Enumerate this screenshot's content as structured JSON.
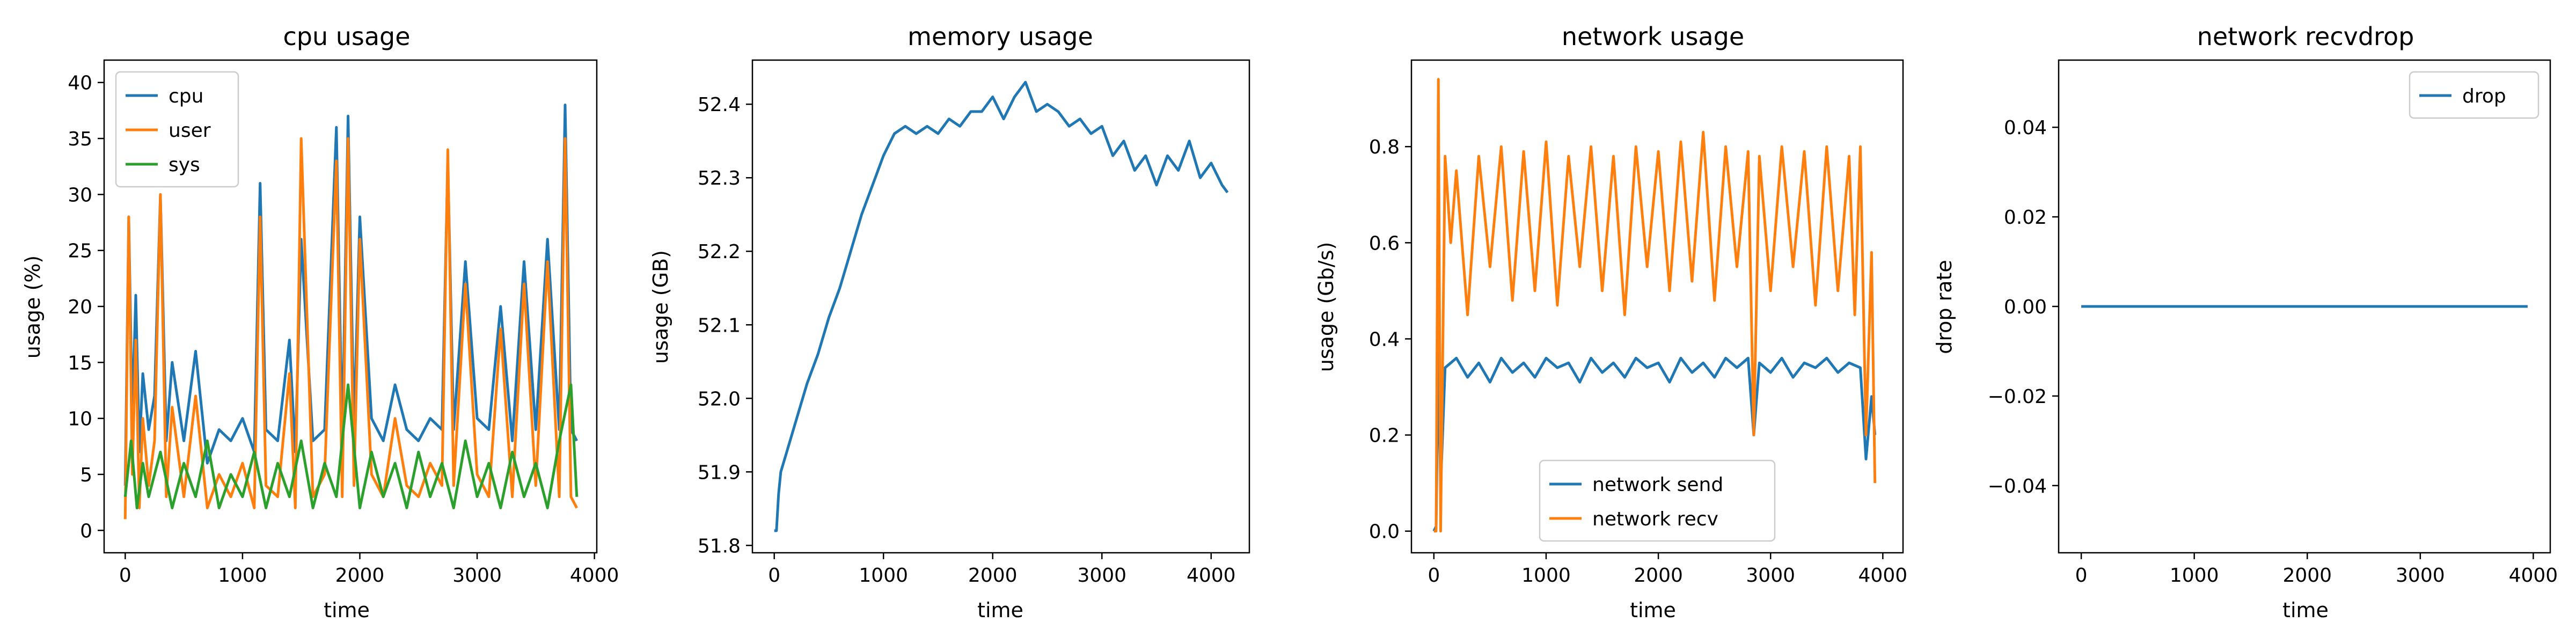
{
  "chart_data": [
    {
      "type": "line",
      "title": "cpu usage",
      "xlabel": "time",
      "ylabel": "usage (%)",
      "xlim": [
        -180,
        4020
      ],
      "ylim": [
        -2,
        42
      ],
      "xticks": [
        0,
        1000,
        2000,
        3000,
        4000
      ],
      "xtick_labels": [
        "0",
        "1000",
        "2000",
        "3000",
        "4000"
      ],
      "yticks": [
        0,
        5,
        10,
        15,
        20,
        25,
        30,
        35,
        40
      ],
      "ytick_labels": [
        "0",
        "5",
        "10",
        "15",
        "20",
        "25",
        "30",
        "35",
        "40"
      ],
      "legend": "top-left",
      "series": [
        {
          "name": "cpu",
          "color": "#1f77b4",
          "x": [
            0,
            30,
            60,
            90,
            120,
            150,
            200,
            250,
            300,
            350,
            400,
            500,
            600,
            700,
            800,
            900,
            1000,
            1100,
            1150,
            1200,
            1300,
            1400,
            1450,
            1500,
            1600,
            1700,
            1800,
            1850,
            1900,
            1950,
            2000,
            2100,
            2200,
            2300,
            2400,
            2500,
            2600,
            2700,
            2750,
            2800,
            2900,
            3000,
            3100,
            3200,
            3300,
            3400,
            3500,
            3600,
            3700,
            3750,
            3800,
            3850
          ],
          "values": [
            4,
            28,
            10,
            21,
            7,
            14,
            9,
            12,
            30,
            8,
            15,
            8,
            16,
            6,
            9,
            8,
            10,
            7,
            31,
            9,
            8,
            17,
            7,
            26,
            8,
            9,
            36,
            8,
            37,
            9,
            28,
            10,
            8,
            13,
            9,
            8,
            10,
            9,
            33,
            9,
            24,
            10,
            9,
            20,
            8,
            24,
            9,
            26,
            9,
            38,
            9,
            8
          ]
        },
        {
          "name": "user",
          "color": "#ff7f0e",
          "x": [
            0,
            30,
            60,
            90,
            120,
            150,
            200,
            250,
            300,
            350,
            400,
            500,
            600,
            700,
            800,
            900,
            1000,
            1100,
            1150,
            1200,
            1300,
            1400,
            1450,
            1500,
            1600,
            1700,
            1800,
            1850,
            1900,
            1950,
            2000,
            2100,
            2200,
            2300,
            2400,
            2500,
            2600,
            2700,
            2750,
            2800,
            2900,
            3000,
            3100,
            3200,
            3300,
            3400,
            3500,
            3600,
            3700,
            3750,
            3800,
            3850
          ],
          "values": [
            1,
            28,
            5,
            17,
            2,
            10,
            4,
            8,
            30,
            3,
            11,
            3,
            12,
            2,
            5,
            3,
            6,
            2,
            28,
            4,
            3,
            14,
            2,
            35,
            3,
            5,
            33,
            3,
            35,
            4,
            26,
            5,
            3,
            10,
            4,
            3,
            6,
            4,
            34,
            4,
            22,
            5,
            3,
            18,
            3,
            22,
            4,
            24,
            3,
            35,
            3,
            2
          ]
        },
        {
          "name": "sys",
          "color": "#2ca02c",
          "x": [
            0,
            50,
            100,
            150,
            200,
            300,
            400,
            500,
            600,
            700,
            800,
            900,
            1000,
            1100,
            1200,
            1300,
            1400,
            1500,
            1600,
            1700,
            1800,
            1900,
            2000,
            2100,
            2200,
            2300,
            2400,
            2500,
            2600,
            2700,
            2800,
            2900,
            3000,
            3100,
            3200,
            3300,
            3400,
            3500,
            3600,
            3700,
            3800,
            3850
          ],
          "values": [
            3,
            8,
            2,
            6,
            3,
            7,
            2,
            6,
            3,
            8,
            2,
            5,
            3,
            7,
            2,
            6,
            3,
            8,
            2,
            6,
            3,
            13,
            2,
            7,
            3,
            6,
            2,
            7,
            3,
            6,
            2,
            8,
            3,
            6,
            2,
            7,
            3,
            6,
            2,
            8,
            13,
            3
          ]
        }
      ]
    },
    {
      "type": "line",
      "title": "memory usage",
      "xlabel": "time",
      "ylabel": "usage (GB)",
      "xlim": [
        -200,
        4350
      ],
      "ylim": [
        51.79,
        52.46
      ],
      "xticks": [
        0,
        1000,
        2000,
        3000,
        4000
      ],
      "xtick_labels": [
        "0",
        "1000",
        "2000",
        "3000",
        "4000"
      ],
      "yticks": [
        51.8,
        51.9,
        52.0,
        52.1,
        52.2,
        52.3,
        52.4
      ],
      "ytick_labels": [
        "51.8",
        "51.9",
        "52.0",
        "52.1",
        "52.2",
        "52.3",
        "52.4"
      ],
      "legend": "none",
      "series": [
        {
          "name": "",
          "color": "#1f77b4",
          "x": [
            0,
            20,
            40,
            60,
            100,
            200,
            300,
            400,
            500,
            600,
            700,
            800,
            900,
            1000,
            1100,
            1200,
            1300,
            1400,
            1500,
            1600,
            1700,
            1800,
            1900,
            2000,
            2100,
            2200,
            2300,
            2400,
            2500,
            2600,
            2700,
            2800,
            2900,
            3000,
            3100,
            3200,
            3300,
            3400,
            3500,
            3600,
            3700,
            3800,
            3900,
            4000,
            4100,
            4150
          ],
          "values": [
            51.82,
            51.82,
            51.87,
            51.9,
            51.92,
            51.97,
            52.02,
            52.06,
            52.11,
            52.15,
            52.2,
            52.25,
            52.29,
            52.33,
            52.36,
            52.37,
            52.36,
            52.37,
            52.36,
            52.38,
            52.37,
            52.39,
            52.39,
            52.41,
            52.38,
            52.41,
            52.43,
            52.39,
            52.4,
            52.39,
            52.37,
            52.38,
            52.36,
            52.37,
            52.33,
            52.35,
            52.31,
            52.33,
            52.29,
            52.33,
            52.31,
            52.35,
            52.3,
            52.32,
            52.29,
            52.28
          ]
        }
      ]
    },
    {
      "type": "line",
      "title": "network usage",
      "xlabel": "time",
      "ylabel": "usage (Gb/s)",
      "xlim": [
        -200,
        4180
      ],
      "ylim": [
        -0.045,
        0.98
      ],
      "xticks": [
        0,
        1000,
        2000,
        3000,
        4000
      ],
      "xtick_labels": [
        "0",
        "1000",
        "2000",
        "3000",
        "4000"
      ],
      "yticks": [
        0.0,
        0.2,
        0.4,
        0.6,
        0.8
      ],
      "ytick_labels": [
        "0.0",
        "0.2",
        "0.4",
        "0.6",
        "0.8"
      ],
      "legend": "bottom-center",
      "series": [
        {
          "name": "network send",
          "color": "#1f77b4",
          "x": [
            0,
            20,
            40,
            60,
            100,
            200,
            300,
            400,
            500,
            600,
            700,
            800,
            900,
            1000,
            1100,
            1200,
            1300,
            1400,
            1500,
            1600,
            1700,
            1800,
            1900,
            2000,
            2100,
            2200,
            2300,
            2400,
            2500,
            2600,
            2700,
            2800,
            2850,
            2900,
            3000,
            3100,
            3200,
            3300,
            3400,
            3500,
            3600,
            3700,
            3800,
            3850,
            3900,
            3930
          ],
          "values": [
            0.0,
            0.01,
            0.37,
            0.09,
            0.34,
            0.36,
            0.32,
            0.35,
            0.31,
            0.36,
            0.33,
            0.35,
            0.32,
            0.36,
            0.34,
            0.35,
            0.31,
            0.36,
            0.33,
            0.35,
            0.32,
            0.36,
            0.34,
            0.35,
            0.31,
            0.36,
            0.33,
            0.35,
            0.32,
            0.36,
            0.34,
            0.36,
            0.2,
            0.35,
            0.33,
            0.36,
            0.32,
            0.35,
            0.34,
            0.36,
            0.33,
            0.35,
            0.34,
            0.15,
            0.28,
            0.2
          ]
        },
        {
          "name": "network recv",
          "color": "#ff7f0e",
          "x": [
            0,
            20,
            40,
            60,
            100,
            150,
            200,
            300,
            400,
            500,
            600,
            700,
            800,
            900,
            1000,
            1100,
            1200,
            1300,
            1400,
            1500,
            1600,
            1700,
            1800,
            1900,
            2000,
            2100,
            2200,
            2300,
            2400,
            2500,
            2600,
            2700,
            2800,
            2850,
            2900,
            3000,
            3100,
            3200,
            3300,
            3400,
            3500,
            3600,
            3700,
            3750,
            3800,
            3850,
            3900,
            3930
          ],
          "values": [
            0.0,
            0.0,
            0.94,
            0.0,
            0.78,
            0.6,
            0.75,
            0.45,
            0.78,
            0.55,
            0.8,
            0.48,
            0.79,
            0.5,
            0.81,
            0.47,
            0.78,
            0.55,
            0.8,
            0.5,
            0.78,
            0.45,
            0.8,
            0.55,
            0.79,
            0.5,
            0.81,
            0.52,
            0.83,
            0.48,
            0.8,
            0.55,
            0.79,
            0.2,
            0.78,
            0.5,
            0.8,
            0.55,
            0.79,
            0.47,
            0.8,
            0.5,
            0.78,
            0.45,
            0.8,
            0.2,
            0.58,
            0.1
          ]
        }
      ]
    },
    {
      "type": "line",
      "title": "network recvdrop",
      "xlabel": "time",
      "ylabel": "drop rate",
      "xlim": [
        -200,
        4150
      ],
      "ylim": [
        -0.055,
        0.055
      ],
      "xticks": [
        0,
        1000,
        2000,
        3000,
        4000
      ],
      "xtick_labels": [
        "0",
        "1000",
        "2000",
        "3000",
        "4000"
      ],
      "yticks": [
        -0.04,
        -0.02,
        0.0,
        0.02,
        0.04
      ],
      "ytick_labels": [
        "−0.04",
        "−0.02",
        "0.00",
        "0.02",
        "0.04"
      ],
      "legend": "top-right",
      "series": [
        {
          "name": "drop",
          "color": "#1f77b4",
          "x": [
            0,
            3950
          ],
          "values": [
            0,
            0
          ]
        }
      ]
    }
  ]
}
